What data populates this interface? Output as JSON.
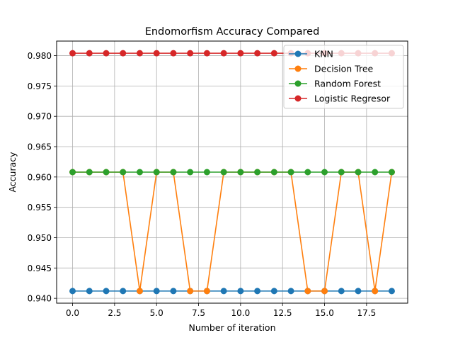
{
  "chart_data": {
    "type": "line",
    "title": "Endomorfism Accuracy Compared",
    "xlabel": "Number of iteration",
    "ylabel": "Accuracy",
    "xlim": [
      -0.95,
      19.95
    ],
    "ylim": [
      0.9392,
      0.9824
    ],
    "xticks": [
      0.0,
      2.5,
      5.0,
      7.5,
      10.0,
      12.5,
      15.0,
      17.5
    ],
    "xtick_labels": [
      "0.0",
      "2.5",
      "5.0",
      "7.5",
      "10.0",
      "12.5",
      "15.0",
      "17.5"
    ],
    "yticks": [
      0.94,
      0.945,
      0.95,
      0.955,
      0.96,
      0.965,
      0.97,
      0.975,
      0.98
    ],
    "ytick_labels": [
      "0.940",
      "0.945",
      "0.950",
      "0.955",
      "0.960",
      "0.965",
      "0.970",
      "0.975",
      "0.980"
    ],
    "grid": true,
    "legend_position": "top-right",
    "x": [
      0,
      1,
      2,
      3,
      4,
      5,
      6,
      7,
      8,
      9,
      10,
      11,
      12,
      13,
      14,
      15,
      16,
      17,
      18,
      19
    ],
    "series": [
      {
        "name": "KNN",
        "color": "#1f77b4",
        "values": [
          0.9412,
          0.9412,
          0.9412,
          0.9412,
          0.9412,
          0.9412,
          0.9412,
          0.9412,
          0.9412,
          0.9412,
          0.9412,
          0.9412,
          0.9412,
          0.9412,
          0.9412,
          0.9412,
          0.9412,
          0.9412,
          0.9412,
          0.9412
        ]
      },
      {
        "name": "Decision Tree",
        "color": "#ff7f0e",
        "values": [
          0.9608,
          0.9608,
          0.9608,
          0.9608,
          0.9412,
          0.9608,
          0.9608,
          0.9412,
          0.9412,
          0.9608,
          0.9608,
          0.9608,
          0.9608,
          0.9608,
          0.9412,
          0.9412,
          0.9608,
          0.9608,
          0.9412,
          0.9608
        ]
      },
      {
        "name": "Random Forest",
        "color": "#2ca02c",
        "values": [
          0.9608,
          0.9608,
          0.9608,
          0.9608,
          0.9608,
          0.9608,
          0.9608,
          0.9608,
          0.9608,
          0.9608,
          0.9608,
          0.9608,
          0.9608,
          0.9608,
          0.9608,
          0.9608,
          0.9608,
          0.9608,
          0.9608,
          0.9608
        ]
      },
      {
        "name": "Logistic Regresor",
        "color": "#d62728",
        "values": [
          0.9804,
          0.9804,
          0.9804,
          0.9804,
          0.9804,
          0.9804,
          0.9804,
          0.9804,
          0.9804,
          0.9804,
          0.9804,
          0.9804,
          0.9804,
          0.9804,
          0.9804,
          0.9804,
          0.9804,
          0.9804,
          0.9804,
          0.9804
        ]
      }
    ]
  }
}
